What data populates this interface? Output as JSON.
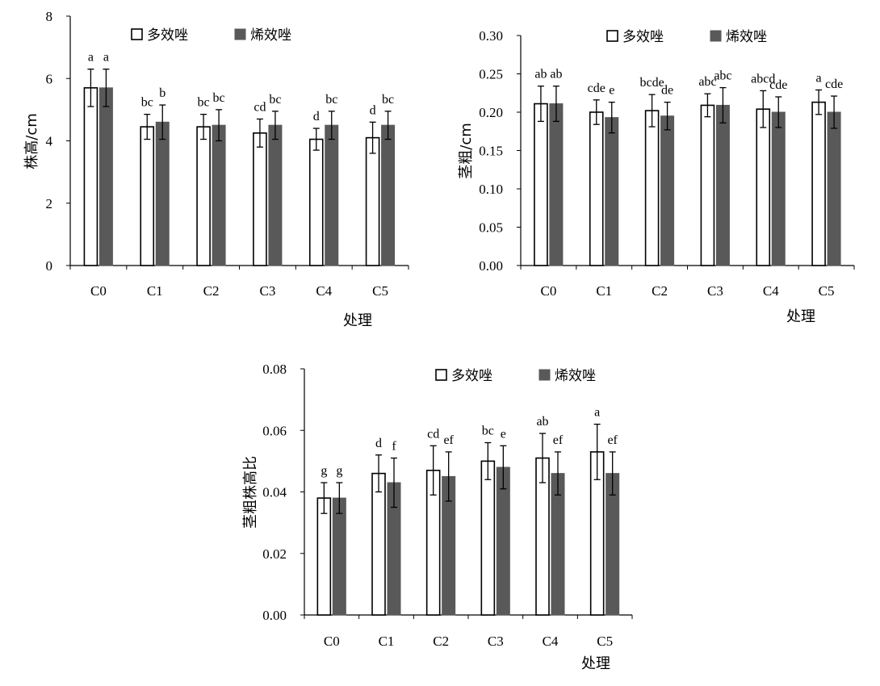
{
  "legend": {
    "series_a": "多效唑",
    "series_b": "烯效唑"
  },
  "chart_data": [
    {
      "type": "bar",
      "xlabel": "处理",
      "ylabel": "株高/cm",
      "ylim": [
        0,
        8
      ],
      "yticks": [
        "0",
        "2",
        "4",
        "6",
        "8"
      ],
      "categories": [
        "C0",
        "C1",
        "C2",
        "C3",
        "C4",
        "C5"
      ],
      "series": [
        {
          "name": "多效唑",
          "color": "#ffffff",
          "values": [
            5.7,
            4.45,
            4.45,
            4.25,
            4.05,
            4.1
          ],
          "errors": [
            0.6,
            0.4,
            0.4,
            0.45,
            0.35,
            0.5
          ],
          "letters": [
            "a",
            "bc",
            "bc",
            "cd",
            "d",
            "d"
          ]
        },
        {
          "name": "烯效唑",
          "color": "#595959",
          "values": [
            5.7,
            4.6,
            4.5,
            4.5,
            4.5,
            4.5
          ],
          "errors": [
            0.6,
            0.55,
            0.5,
            0.45,
            0.45,
            0.45
          ],
          "letters": [
            "a",
            "b",
            "bc",
            "bc",
            "bc",
            "bc"
          ]
        }
      ]
    },
    {
      "type": "bar",
      "xlabel": "处理",
      "ylabel": "茎粗/cm",
      "ylim": [
        0,
        0.3
      ],
      "yticks": [
        "0.00",
        "0.05",
        "0.10",
        "0.15",
        "0.20",
        "0.25",
        "0.30"
      ],
      "categories": [
        "C0",
        "C1",
        "C2",
        "C3",
        "C4",
        "C5"
      ],
      "series": [
        {
          "name": "多效唑",
          "color": "#ffffff",
          "values": [
            0.211,
            0.2,
            0.202,
            0.209,
            0.204,
            0.213
          ],
          "errors": [
            0.023,
            0.016,
            0.021,
            0.015,
            0.024,
            0.016
          ],
          "letters": [
            "ab",
            "cde",
            "bcde",
            "abc",
            "abcd",
            "a"
          ]
        },
        {
          "name": "烯效唑",
          "color": "#595959",
          "values": [
            0.211,
            0.193,
            0.195,
            0.209,
            0.2,
            0.2
          ],
          "errors": [
            0.023,
            0.02,
            0.018,
            0.023,
            0.02,
            0.021
          ],
          "letters": [
            "ab",
            "e",
            "de",
            "abc",
            "cde",
            "cde"
          ]
        }
      ]
    },
    {
      "type": "bar",
      "xlabel": "处理",
      "ylabel": "茎粗株高比",
      "ylim": [
        0,
        0.08
      ],
      "yticks": [
        "0.00",
        "0.02",
        "0.04",
        "0.06",
        "0.08"
      ],
      "categories": [
        "C0",
        "C1",
        "C2",
        "C3",
        "C4",
        "C5"
      ],
      "series": [
        {
          "name": "多效唑",
          "color": "#ffffff",
          "values": [
            0.038,
            0.046,
            0.047,
            0.05,
            0.051,
            0.053
          ],
          "errors": [
            0.005,
            0.006,
            0.008,
            0.006,
            0.008,
            0.009
          ],
          "letters": [
            "g",
            "d",
            "cd",
            "bc",
            "ab",
            "a"
          ]
        },
        {
          "name": "烯效唑",
          "color": "#595959",
          "values": [
            0.038,
            0.043,
            0.045,
            0.048,
            0.046,
            0.046
          ],
          "errors": [
            0.005,
            0.008,
            0.008,
            0.007,
            0.007,
            0.007
          ],
          "letters": [
            "g",
            "f",
            "ef",
            "e",
            "ef",
            "ef"
          ]
        }
      ]
    }
  ]
}
